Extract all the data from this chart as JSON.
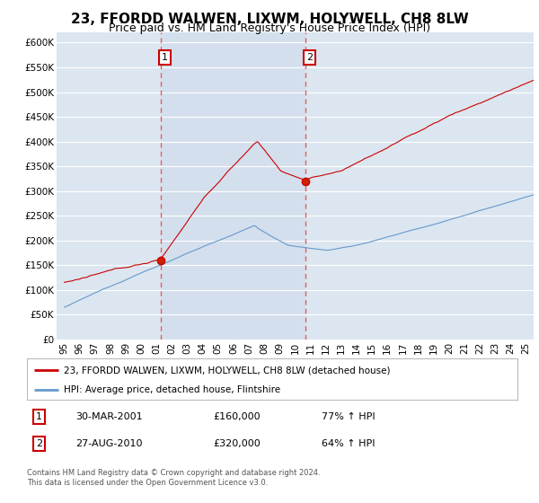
{
  "title": "23, FFORDD WALWEN, LIXWM, HOLYWELL, CH8 8LW",
  "subtitle": "Price paid vs. HM Land Registry's House Price Index (HPI)",
  "title_fontsize": 11,
  "subtitle_fontsize": 9,
  "background_color": "#ffffff",
  "plot_bg_color": "#dce6f0",
  "plot_bg_color2": "#cdd9eb",
  "grid_color": "#ffffff",
  "red_line_color": "#cc0000",
  "blue_line_color": "#6699cc",
  "dashed_line_color": "#e06060",
  "sale1_date_x": 2001.25,
  "sale1_price": 160000,
  "sale1_label": "1",
  "sale2_date_x": 2010.65,
  "sale2_price": 320000,
  "sale2_label": "2",
  "ylim": [
    0,
    620000
  ],
  "xlim_start": 1994.5,
  "xlim_end": 2025.5,
  "ytick_values": [
    0,
    50000,
    100000,
    150000,
    200000,
    250000,
    300000,
    350000,
    400000,
    450000,
    500000,
    550000,
    600000
  ],
  "ytick_labels": [
    "£0",
    "£50K",
    "£100K",
    "£150K",
    "£200K",
    "£250K",
    "£300K",
    "£350K",
    "£400K",
    "£450K",
    "£500K",
    "£550K",
    "£600K"
  ],
  "xtick_years": [
    1995,
    1996,
    1997,
    1998,
    1999,
    2000,
    2001,
    2002,
    2003,
    2004,
    2005,
    2006,
    2007,
    2008,
    2009,
    2010,
    2011,
    2012,
    2013,
    2014,
    2015,
    2016,
    2017,
    2018,
    2019,
    2020,
    2021,
    2022,
    2023,
    2024,
    2025
  ],
  "legend_red_label": "23, FFORDD WALWEN, LIXWM, HOLYWELL, CH8 8LW (detached house)",
  "legend_blue_label": "HPI: Average price, detached house, Flintshire",
  "table_rows": [
    {
      "num": "1",
      "date": "30-MAR-2001",
      "price": "£160,000",
      "change": "77% ↑ HPI"
    },
    {
      "num": "2",
      "date": "27-AUG-2010",
      "price": "£320,000",
      "change": "64% ↑ HPI"
    }
  ],
  "footer": "Contains HM Land Registry data © Crown copyright and database right 2024.\nThis data is licensed under the Open Government Licence v3.0."
}
